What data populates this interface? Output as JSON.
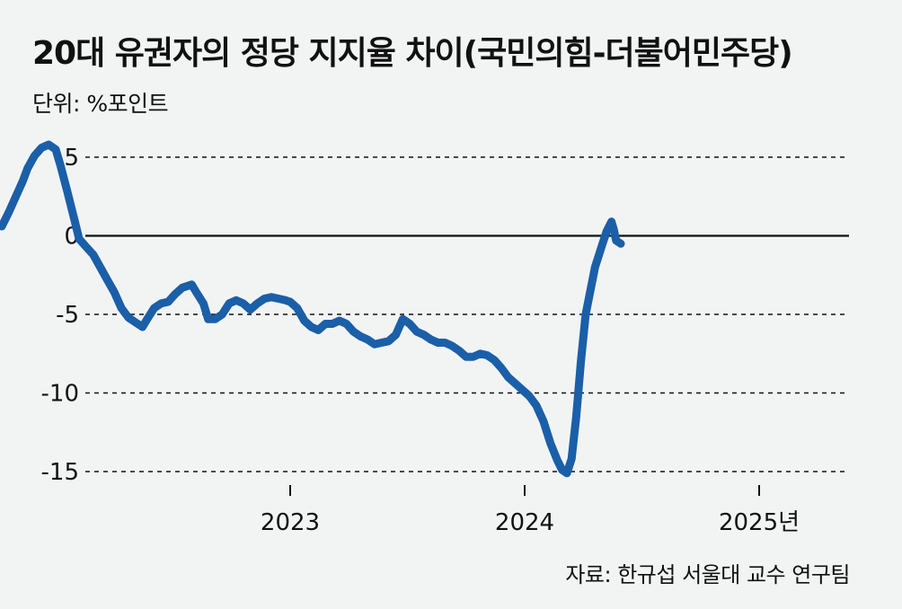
{
  "chart_data": {
    "type": "line",
    "title": "20대 유권자의 정당 지지율 차이(국민의힘-더불어민주당)",
    "unit_label": "단위: %포인트",
    "source": "자료: 한규섭 서울대 교수 연구팀",
    "y_ticks": [
      "5",
      "0",
      "-5",
      "-10",
      "-15"
    ],
    "y_tick_values": [
      5,
      0,
      -5,
      -10,
      -15
    ],
    "x_ticks": [
      "2023",
      "2024",
      "2025년"
    ],
    "x_tick_values": [
      2023.0,
      2024.0,
      2025.0
    ],
    "xlim": [
      2021.75,
      2025.45
    ],
    "ylim": [
      -16,
      7
    ],
    "grid": "dashed horizontal",
    "zero_line": true,
    "line_color": "#1a5fa8",
    "series": [
      {
        "name": "",
        "points": [
          [
            2021.77,
            0.6
          ],
          [
            2021.8,
            1.5
          ],
          [
            2021.83,
            2.5
          ],
          [
            2021.86,
            3.5
          ],
          [
            2021.88,
            4.3
          ],
          [
            2021.91,
            5.1
          ],
          [
            2021.94,
            5.6
          ],
          [
            2021.97,
            5.8
          ],
          [
            2022.0,
            5.5
          ],
          [
            2022.02,
            4.5
          ],
          [
            2022.05,
            2.8
          ],
          [
            2022.08,
            1.0
          ],
          [
            2022.1,
            -0.2
          ],
          [
            2022.13,
            -0.7
          ],
          [
            2022.16,
            -1.2
          ],
          [
            2022.19,
            -2.0
          ],
          [
            2022.22,
            -2.8
          ],
          [
            2022.25,
            -3.6
          ],
          [
            2022.28,
            -4.6
          ],
          [
            2022.31,
            -5.2
          ],
          [
            2022.34,
            -5.5
          ],
          [
            2022.37,
            -5.8
          ],
          [
            2022.39,
            -5.3
          ],
          [
            2022.42,
            -4.6
          ],
          [
            2022.45,
            -4.3
          ],
          [
            2022.48,
            -4.2
          ],
          [
            2022.51,
            -3.7
          ],
          [
            2022.54,
            -3.3
          ],
          [
            2022.58,
            -3.1
          ],
          [
            2022.6,
            -3.6
          ],
          [
            2022.63,
            -4.3
          ],
          [
            2022.65,
            -5.3
          ],
          [
            2022.68,
            -5.3
          ],
          [
            2022.71,
            -5.0
          ],
          [
            2022.74,
            -4.3
          ],
          [
            2022.77,
            -4.1
          ],
          [
            2022.8,
            -4.3
          ],
          [
            2022.83,
            -4.7
          ],
          [
            2022.86,
            -4.3
          ],
          [
            2022.89,
            -4.0
          ],
          [
            2022.92,
            -3.9
          ],
          [
            2022.95,
            -4.0
          ],
          [
            2022.98,
            -4.1
          ],
          [
            2023.0,
            -4.2
          ],
          [
            2023.03,
            -4.6
          ],
          [
            2023.06,
            -5.4
          ],
          [
            2023.09,
            -5.8
          ],
          [
            2023.12,
            -6.0
          ],
          [
            2023.15,
            -5.6
          ],
          [
            2023.18,
            -5.6
          ],
          [
            2023.21,
            -5.4
          ],
          [
            2023.24,
            -5.6
          ],
          [
            2023.27,
            -6.1
          ],
          [
            2023.3,
            -6.4
          ],
          [
            2023.33,
            -6.6
          ],
          [
            2023.36,
            -6.9
          ],
          [
            2023.39,
            -6.8
          ],
          [
            2023.42,
            -6.7
          ],
          [
            2023.45,
            -6.3
          ],
          [
            2023.48,
            -5.3
          ],
          [
            2023.51,
            -5.6
          ],
          [
            2023.54,
            -6.1
          ],
          [
            2023.57,
            -6.3
          ],
          [
            2023.6,
            -6.6
          ],
          [
            2023.63,
            -6.8
          ],
          [
            2023.66,
            -6.8
          ],
          [
            2023.69,
            -7.0
          ],
          [
            2023.72,
            -7.3
          ],
          [
            2023.75,
            -7.7
          ],
          [
            2023.78,
            -7.7
          ],
          [
            2023.81,
            -7.5
          ],
          [
            2023.84,
            -7.6
          ],
          [
            2023.87,
            -7.9
          ],
          [
            2023.9,
            -8.4
          ],
          [
            2023.93,
            -9.0
          ],
          [
            2023.96,
            -9.4
          ],
          [
            2023.99,
            -9.8
          ],
          [
            2024.02,
            -10.2
          ],
          [
            2024.05,
            -10.8
          ],
          [
            2024.08,
            -11.8
          ],
          [
            2024.11,
            -13.2
          ],
          [
            2024.14,
            -14.3
          ],
          [
            2024.16,
            -14.9
          ],
          [
            2024.18,
            -15.1
          ],
          [
            2024.2,
            -14.2
          ],
          [
            2024.22,
            -11.5
          ],
          [
            2024.24,
            -8.0
          ],
          [
            2024.26,
            -5.0
          ],
          [
            2024.28,
            -3.5
          ],
          [
            2024.3,
            -2.0
          ],
          [
            2024.33,
            -0.6
          ],
          [
            2024.35,
            0.3
          ],
          [
            2024.37,
            0.9
          ],
          [
            2024.38,
            0.4
          ],
          [
            2024.39,
            -0.3
          ],
          [
            2024.41,
            -0.5
          ]
        ]
      }
    ]
  }
}
